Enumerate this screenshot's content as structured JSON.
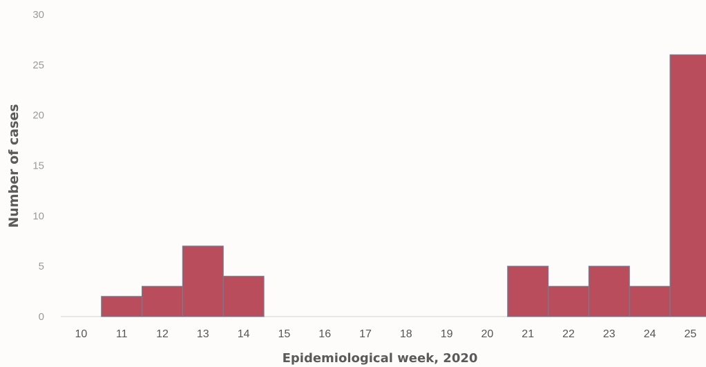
{
  "chart_data": {
    "type": "bar",
    "title": "",
    "xlabel": "Epidemiological week, 2020",
    "ylabel": "Number of cases",
    "categories": [
      "10",
      "11",
      "12",
      "13",
      "14",
      "15",
      "16",
      "17",
      "18",
      "19",
      "20",
      "21",
      "22",
      "23",
      "24",
      "25"
    ],
    "values": [
      0,
      2,
      3,
      7,
      4,
      0,
      0,
      0,
      0,
      0,
      0,
      5,
      3,
      5,
      3,
      26
    ],
    "ylim": [
      0,
      30
    ],
    "yticks": [
      "0",
      "5",
      "10",
      "15",
      "20",
      "25",
      "30"
    ],
    "grid": false,
    "legend": "none",
    "colors": {
      "bar_fill": "#b94d5b",
      "bar_stroke": "#6f7f95",
      "axis_text": "#9a9a9a",
      "xtick_text": "#555555",
      "title_text": "#5a5a5a"
    }
  }
}
